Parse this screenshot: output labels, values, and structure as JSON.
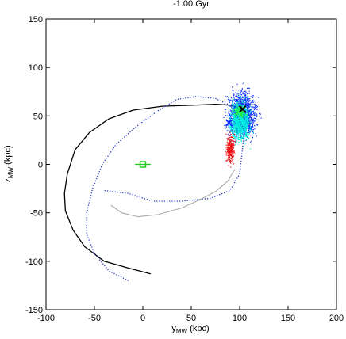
{
  "chart_data": {
    "type": "scatter",
    "title": "-1.00 Gyr",
    "xlabel": {
      "main": "y",
      "sub": "MW",
      "unit": " (kpc)"
    },
    "ylabel": {
      "main": "z",
      "sub": "MW",
      "unit": " (kpc)"
    },
    "xlim": [
      -100,
      200
    ],
    "ylim": [
      -150,
      150
    ],
    "xticks": [
      -100,
      -50,
      0,
      50,
      100,
      150,
      200
    ],
    "yticks": [
      -150,
      -100,
      -50,
      0,
      50,
      100,
      150
    ],
    "grid": false,
    "series": [
      {
        "kind": "solid-line",
        "color": "#000000",
        "points": [
          [
            8,
            -113
          ],
          [
            -15,
            -107
          ],
          [
            -40,
            -100
          ],
          [
            -60,
            -85
          ],
          [
            -72,
            -68
          ],
          [
            -80,
            -48
          ],
          [
            -81,
            -30
          ],
          [
            -78,
            -10
          ],
          [
            -70,
            15
          ],
          [
            -55,
            33
          ],
          [
            -35,
            47
          ],
          [
            -10,
            56
          ],
          [
            20,
            60
          ],
          [
            50,
            61
          ],
          [
            75,
            62
          ],
          [
            92,
            61
          ]
        ]
      },
      {
        "kind": "dotted-line",
        "color": "#2233cc",
        "points": [
          [
            -15,
            -120
          ],
          [
            -35,
            -110
          ],
          [
            -50,
            -92
          ],
          [
            -58,
            -72
          ],
          [
            -58,
            -50
          ],
          [
            -52,
            -25
          ],
          [
            -42,
            0
          ],
          [
            -28,
            20
          ],
          [
            -8,
            38
          ],
          [
            15,
            55
          ],
          [
            35,
            67
          ],
          [
            55,
            70
          ],
          [
            75,
            68
          ],
          [
            92,
            60
          ],
          [
            105,
            35
          ],
          [
            100,
            -10
          ],
          [
            90,
            -27
          ],
          [
            70,
            -35
          ],
          [
            40,
            -38
          ],
          [
            10,
            -38
          ],
          [
            -15,
            -30
          ],
          [
            -40,
            -27
          ]
        ]
      },
      {
        "kind": "grey-line",
        "color": "#aaaaaa",
        "points": [
          [
            -33,
            -42
          ],
          [
            -22,
            -50
          ],
          [
            -5,
            -54
          ],
          [
            15,
            -52
          ],
          [
            40,
            -45
          ],
          [
            60,
            -36
          ],
          [
            75,
            -28
          ],
          [
            88,
            -17
          ],
          [
            95,
            -5
          ]
        ]
      }
    ],
    "clouds": [
      {
        "color": "#1133ff",
        "center": [
          102,
          52
        ],
        "spread": [
          14,
          22
        ]
      },
      {
        "color": "#00eedd",
        "center": [
          100,
          45
        ],
        "spread": [
          9,
          19
        ]
      },
      {
        "color": "#22ee44",
        "center": [
          100,
          55
        ],
        "spread": [
          6,
          6
        ]
      },
      {
        "color": "#ee1111",
        "center": [
          90,
          16
        ],
        "spread": [
          4,
          14
        ]
      }
    ],
    "markers": [
      {
        "symbol": "x",
        "color": "#000000",
        "value": [
          103,
          57
        ]
      },
      {
        "symbol": "x",
        "color": "#1133ff",
        "value": [
          89,
          43
        ]
      },
      {
        "symbol": "square-with-bar",
        "color": "#22cc22",
        "value": [
          0,
          0
        ]
      }
    ]
  }
}
